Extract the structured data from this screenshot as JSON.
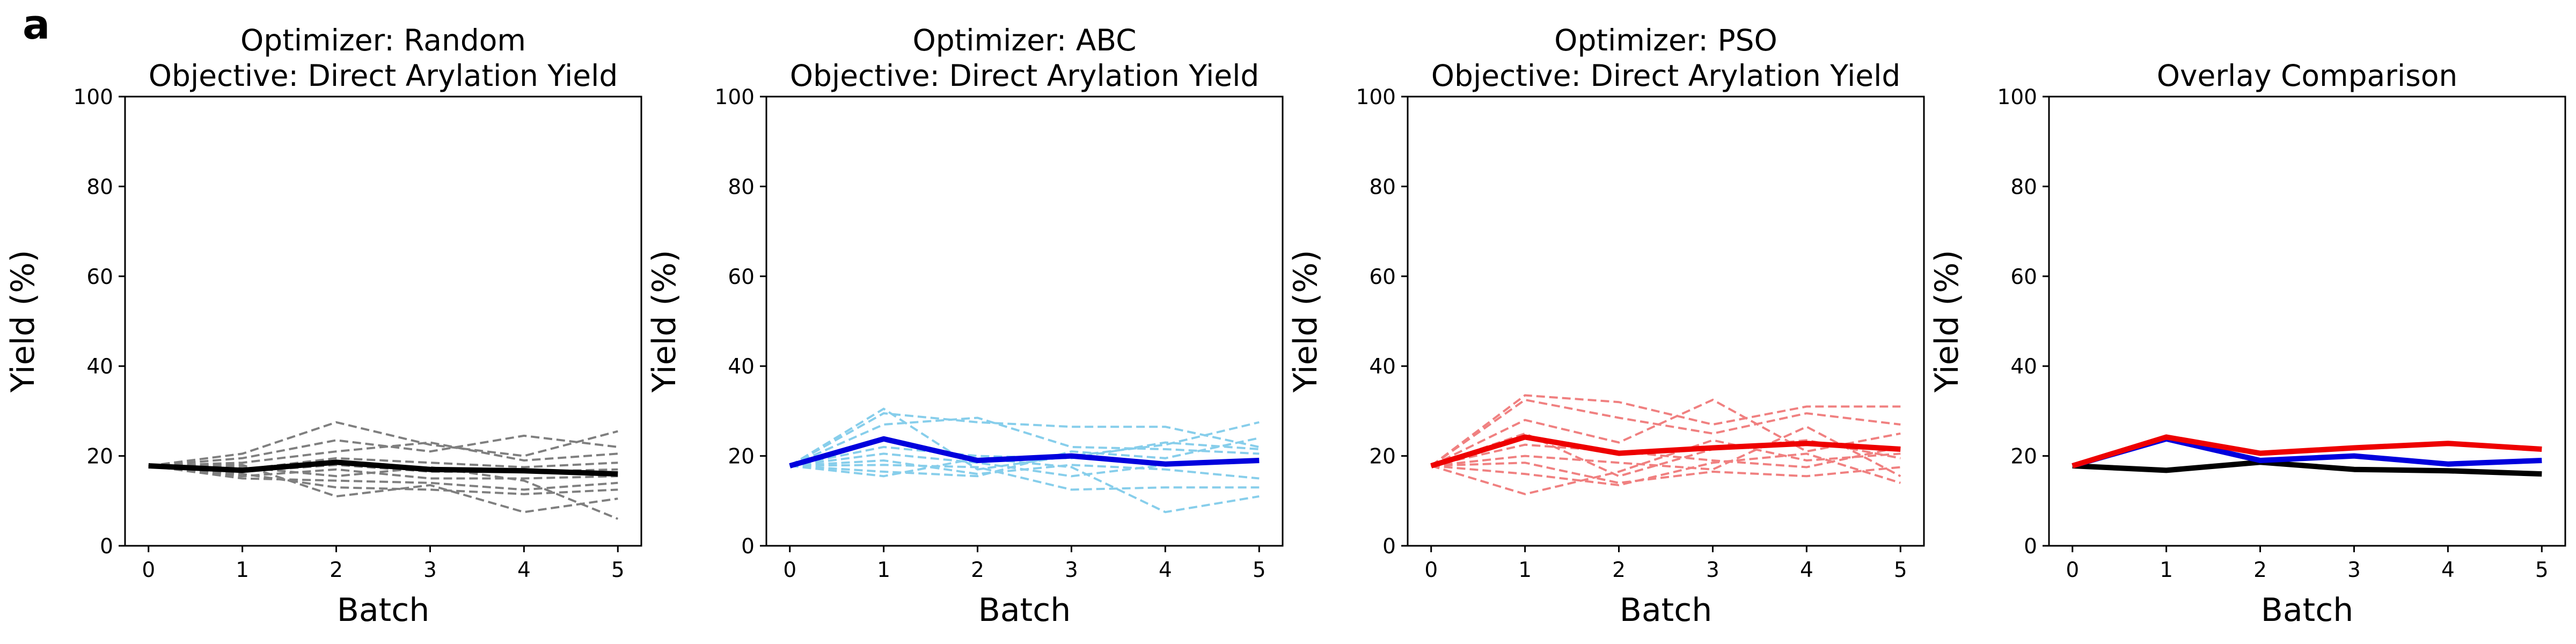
{
  "panel_label": "a",
  "colors": {
    "random_individual": "#7f7f7f",
    "random_mean": "#000000",
    "abc_individual": "#87ceeb",
    "abc_mean": "#0000dd",
    "pso_individual": "#f08080",
    "pso_mean": "#ee0000"
  },
  "chart_data": [
    {
      "type": "line",
      "title": "Optimizer: Random\nObjective: Direct Arylation Yield",
      "title_lines": [
        "Optimizer: Random",
        "Objective: Direct Arylation Yield"
      ],
      "xlabel": "Batch",
      "ylabel": "Yield (%)",
      "x": [
        0,
        1,
        2,
        3,
        4,
        5
      ],
      "xticks": [
        "0",
        "1",
        "2",
        "3",
        "4",
        "5"
      ],
      "yticks": [
        "0",
        "20",
        "40",
        "60",
        "80",
        "100"
      ],
      "ylim": [
        0,
        100
      ],
      "xlim": [
        -0.25,
        5.25
      ],
      "grid": false,
      "individual_color": "#7f7f7f",
      "mean_color": "#000000",
      "individual_runs": [
        [
          17.8,
          20.5,
          27.5,
          22.5,
          20.0,
          25.5
        ],
        [
          17.8,
          19.5,
          23.5,
          21.0,
          24.5,
          22.0
        ],
        [
          17.8,
          18.5,
          21.0,
          23.0,
          19.0,
          20.5
        ],
        [
          17.8,
          17.0,
          19.5,
          18.5,
          17.5,
          18.5
        ],
        [
          17.8,
          16.5,
          18.0,
          16.5,
          16.5,
          17.0
        ],
        [
          17.8,
          15.5,
          17.0,
          15.0,
          15.0,
          15.5
        ],
        [
          17.8,
          15.0,
          14.5,
          14.0,
          12.5,
          14.0
        ],
        [
          17.8,
          16.0,
          13.0,
          12.5,
          11.5,
          12.5
        ],
        [
          17.8,
          18.0,
          11.0,
          13.5,
          7.5,
          10.5
        ],
        [
          17.8,
          17.5,
          15.5,
          17.5,
          14.5,
          6.0
        ]
      ],
      "mean": [
        17.8,
        16.8,
        18.6,
        17.0,
        16.7,
        16.0
      ]
    },
    {
      "type": "line",
      "title": "Optimizer: ABC\nObjective: Direct Arylation Yield",
      "title_lines": [
        "Optimizer: ABC",
        "Objective: Direct Arylation Yield"
      ],
      "xlabel": "Batch",
      "ylabel": "Yield (%)",
      "x": [
        0,
        1,
        2,
        3,
        4,
        5
      ],
      "xticks": [
        "0",
        "1",
        "2",
        "3",
        "4",
        "5"
      ],
      "yticks": [
        "0",
        "20",
        "40",
        "60",
        "80",
        "100"
      ],
      "ylim": [
        0,
        100
      ],
      "xlim": [
        -0.25,
        5.25
      ],
      "grid": false,
      "individual_color": "#87ceeb",
      "mean_color": "#0000dd",
      "individual_runs": [
        [
          17.8,
          30.5,
          17.0,
          20.0,
          22.5,
          27.5
        ],
        [
          17.8,
          29.5,
          27.5,
          26.5,
          26.5,
          22.0
        ],
        [
          17.8,
          27.0,
          28.5,
          22.0,
          21.5,
          20.5
        ],
        [
          17.8,
          22.0,
          20.0,
          19.5,
          23.0,
          21.5
        ],
        [
          17.8,
          20.5,
          18.5,
          15.5,
          18.0,
          19.0
        ],
        [
          17.8,
          19.0,
          16.0,
          18.0,
          17.0,
          15.0
        ],
        [
          17.8,
          18.0,
          17.5,
          12.5,
          13.0,
          13.0
        ],
        [
          17.8,
          15.5,
          19.5,
          17.5,
          7.5,
          11.0
        ],
        [
          17.8,
          16.5,
          15.5,
          21.0,
          19.5,
          24.0
        ]
      ],
      "mean": [
        17.8,
        23.8,
        19.0,
        20.0,
        18.2,
        19.0
      ]
    },
    {
      "type": "line",
      "title": "Optimizer: PSO\nObjective: Direct Arylation Yield",
      "title_lines": [
        "Optimizer: PSO",
        "Objective: Direct Arylation Yield"
      ],
      "xlabel": "Batch",
      "ylabel": "Yield (%)",
      "x": [
        0,
        1,
        2,
        3,
        4,
        5
      ],
      "xticks": [
        "0",
        "1",
        "2",
        "3",
        "4",
        "5"
      ],
      "yticks": [
        "0",
        "20",
        "40",
        "60",
        "80",
        "100"
      ],
      "ylim": [
        0,
        100
      ],
      "xlim": [
        -0.25,
        5.25
      ],
      "grid": false,
      "individual_color": "#f08080",
      "mean_color": "#ee0000",
      "individual_runs": [
        [
          17.8,
          33.5,
          32.0,
          27.0,
          31.0,
          31.0
        ],
        [
          17.8,
          32.5,
          28.5,
          25.0,
          29.5,
          27.0
        ],
        [
          17.8,
          28.0,
          23.0,
          32.5,
          21.0,
          25.0
        ],
        [
          17.8,
          25.0,
          15.5,
          21.5,
          23.5,
          19.5
        ],
        [
          17.8,
          22.5,
          21.0,
          19.0,
          17.5,
          22.0
        ],
        [
          17.8,
          20.0,
          18.5,
          17.0,
          26.5,
          15.5
        ],
        [
          17.8,
          18.5,
          14.0,
          16.5,
          15.5,
          17.5
        ],
        [
          17.8,
          16.0,
          13.5,
          18.5,
          20.5,
          14.0
        ],
        [
          17.8,
          11.5,
          16.5,
          23.5,
          19.0,
          20.5
        ]
      ],
      "mean": [
        17.8,
        24.2,
        20.6,
        21.8,
        22.8,
        21.5
      ]
    },
    {
      "type": "line",
      "title": "Overlay Comparison",
      "title_lines": [
        "Overlay Comparison"
      ],
      "xlabel": "Batch",
      "ylabel": "Yield (%)",
      "x": [
        0,
        1,
        2,
        3,
        4,
        5
      ],
      "xticks": [
        "0",
        "1",
        "2",
        "3",
        "4",
        "5"
      ],
      "yticks": [
        "0",
        "20",
        "40",
        "60",
        "80",
        "100"
      ],
      "ylim": [
        0,
        100
      ],
      "xlim": [
        -0.25,
        5.25
      ],
      "grid": false,
      "series": [
        {
          "values": [
            17.8,
            16.8,
            18.6,
            17.0,
            16.7,
            16.0
          ],
          "color": "#000000"
        },
        {
          "values": [
            17.8,
            23.8,
            19.0,
            20.0,
            18.2,
            19.0
          ],
          "color": "#0000dd"
        },
        {
          "values": [
            17.8,
            24.2,
            20.6,
            21.8,
            22.8,
            21.5
          ],
          "color": "#ee0000"
        }
      ]
    }
  ]
}
